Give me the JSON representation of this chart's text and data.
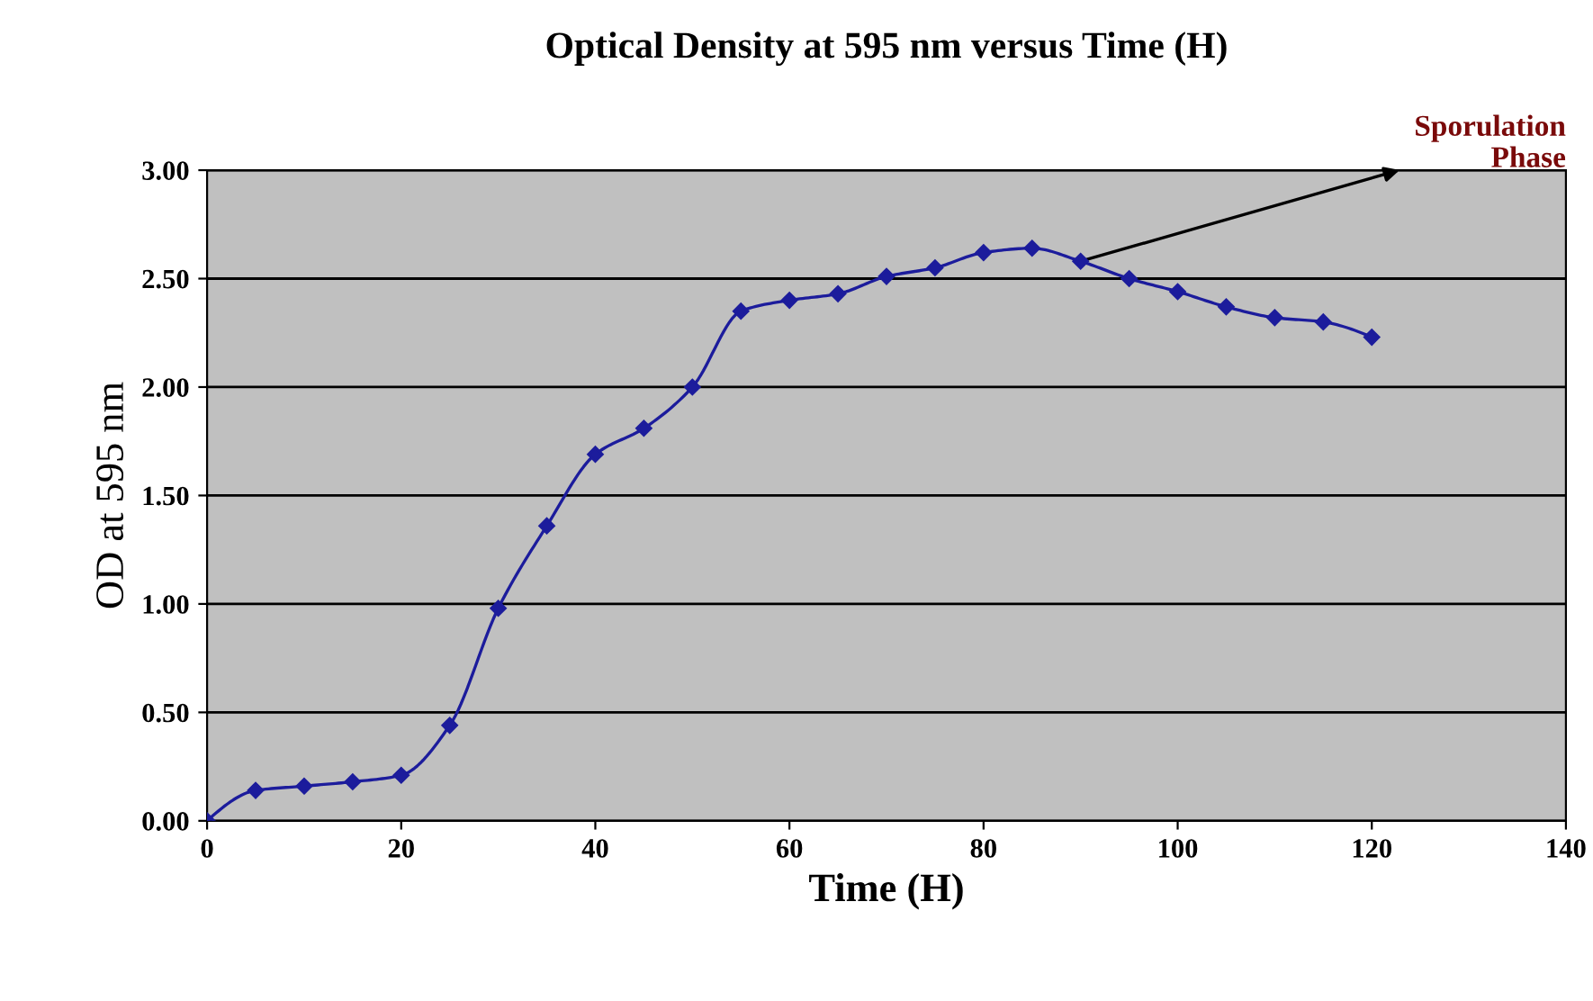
{
  "chart_data": {
    "type": "line",
    "title": "Optical Density at 595 nm versus Time (H)",
    "xlabel": "Time (H)",
    "ylabel": "OD at 595 nm",
    "x": [
      0,
      5,
      10,
      15,
      20,
      25,
      30,
      35,
      40,
      45,
      50,
      55,
      60,
      65,
      70,
      75,
      80,
      85,
      90,
      95,
      100,
      105,
      110,
      115,
      120
    ],
    "series": [
      {
        "color": "#1c1c9c",
        "values": [
          0.0,
          0.14,
          0.16,
          0.18,
          0.21,
          0.44,
          0.98,
          1.36,
          1.69,
          1.81,
          2.0,
          2.35,
          2.4,
          2.43,
          2.51,
          2.55,
          2.62,
          2.64,
          2.58,
          2.5,
          2.44,
          2.37,
          2.32,
          2.3,
          2.23
        ]
      }
    ],
    "xlim": [
      0,
      140
    ],
    "xticks": [
      0,
      20,
      40,
      60,
      80,
      100,
      120,
      140
    ],
    "ylim": [
      0,
      3
    ],
    "yticks": [
      {
        "value": 0,
        "label": "0.00"
      },
      {
        "value": 0.5,
        "label": "0.50"
      },
      {
        "value": 1,
        "label": "1.00"
      },
      {
        "value": 1.5,
        "label": "1.50"
      },
      {
        "value": 2,
        "label": "2.00"
      },
      {
        "value": 2.5,
        "label": "2.50"
      },
      {
        "value": 3,
        "label": "3.00"
      }
    ],
    "grid": "y",
    "marker": "diamond",
    "line_style": "solid",
    "legend": false,
    "annotations": [
      {
        "text": "Sporulation\nPhase",
        "x": 90,
        "y": 2.58
      }
    ]
  }
}
